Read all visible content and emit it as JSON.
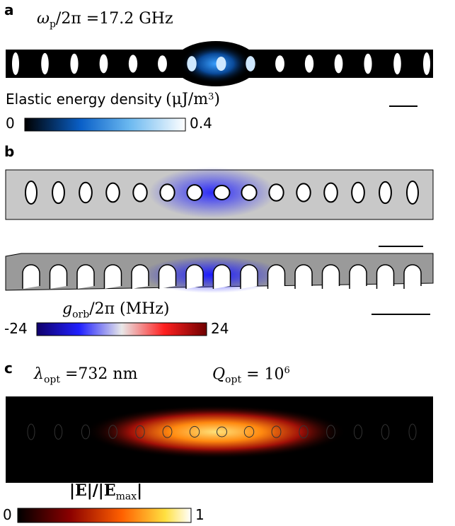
{
  "panels": [
    {
      "label": "a",
      "title": {
        "symbol": "ω",
        "sub": "p",
        "rest": "/2π =17.2 GHz"
      },
      "colorbar": {
        "label": "Elastic energy density",
        "unit": "(μJ/m",
        "unit_sup": "3",
        "unit_end": ")",
        "min": "0",
        "max": "0.4"
      }
    },
    {
      "label": "b",
      "colorbar": {
        "symbol": "g",
        "sub": "orb",
        "rest": "/2π (MHz)",
        "min": "-24",
        "max": "24"
      }
    },
    {
      "label": "c",
      "title": {
        "symbol": "λ",
        "sub": "opt",
        "rest": " =732 nm",
        "q_symbol": "Q",
        "q_sub": "opt",
        "q_rest": " = 10",
        "q_sup": "6"
      },
      "colorbar": {
        "label": "|E|/|E",
        "label_sub": "max",
        "label_end": "|",
        "min": "0",
        "max": "1"
      }
    }
  ]
}
